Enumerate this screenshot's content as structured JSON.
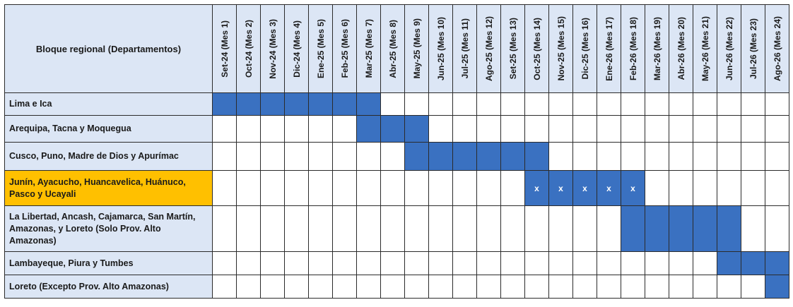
{
  "header": {
    "label": "Bloque regional (Departamentos)",
    "months": [
      "Set-24 (Mes 1)",
      "Oct-24 (Mes 2)",
      "Nov-24 (Mes 3)",
      "Dic-24 (Mes 4)",
      "Ene-25 (Mes 5)",
      "Feb-25 (Mes 6)",
      "Mar-25 (Mes 7)",
      "Abr-25 (Mes 8)",
      "May-25 (Mes 9)",
      "Jun-25 (Mes 10)",
      "Jul-25 (Mes 11)",
      "Ago-25 (Mes 12)",
      "Set-25 (Mes 13)",
      "Oct-25 (Mes 14)",
      "Nov-25 (Mes 15)",
      "Dic-25 (Mes 16)",
      "Ene-26 (Mes 17)",
      "Feb-26 (Mes 18)",
      "Mar-26 (Mes 19)",
      "Abr-26 (Mes 20)",
      "May-26 (Mes 21)",
      "Jun-26 (Mes 22)",
      "Jul-26 (Mes 23)",
      "Ago-26 (Mes 24)"
    ]
  },
  "rows": [
    {
      "label": "Lima e Ica",
      "start_month": 1,
      "end_month": 7
    },
    {
      "label": "Arequipa, Tacna y Moquegua",
      "start_month": 7,
      "end_month": 9
    },
    {
      "label": "Cusco, Puno, Madre de Dios y Apurímac",
      "start_month": 9,
      "end_month": 14
    },
    {
      "label": "Junín, Ayacucho, Huancavelica, Huánuco, Pasco y Ucayali",
      "start_month": 14,
      "end_month": 18,
      "highlighted": true,
      "mark": "x"
    },
    {
      "label": "La Libertad, Ancash, Cajamarca, San Martín, Amazonas, y Loreto (Solo Prov. Alto Amazonas)",
      "start_month": 18,
      "end_month": 22
    },
    {
      "label": "Lambayeque, Piura y Tumbes",
      "start_month": 22,
      "end_month": 24
    },
    {
      "label": "Loreto (Excepto Prov. Alto Amazonas)",
      "start_month": 24,
      "end_month": 24
    }
  ],
  "colors": {
    "bar": "#3a71c1",
    "header_bg": "#dce6f5",
    "highlight": "#ffc000",
    "grid": "#2b2b2b"
  }
}
